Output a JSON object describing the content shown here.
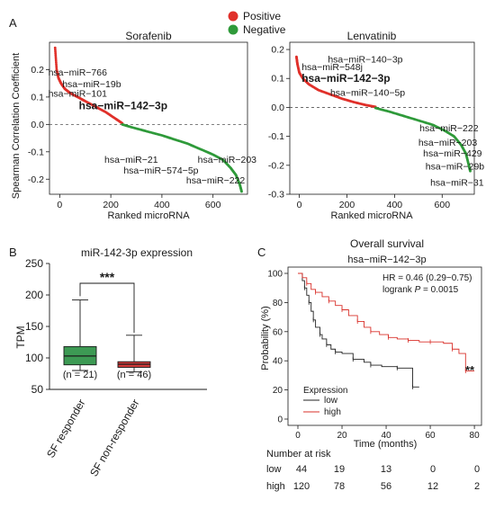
{
  "panel_labels": {
    "a": "A",
    "b": "B",
    "c": "C"
  },
  "legend": {
    "positive_label": "Positive",
    "negative_label": "Negative",
    "positive_color": "#e0302a",
    "negative_color": "#2f9a3a"
  },
  "chart_data": [
    {
      "id": "sorafenib",
      "type": "scatter",
      "title": "Sorafenib",
      "xlabel": "Ranked microRNA",
      "ylabel": "Spearman Correlation Coefficient",
      "xlim": [
        -40,
        735
      ],
      "ylim": [
        -0.255,
        0.3
      ],
      "xticks": [
        "0",
        "200",
        "400",
        "600"
      ],
      "xtick_values": [
        0,
        200,
        400,
        600
      ],
      "yticks": [
        "-0.2",
        "-0.1",
        "0.0",
        "0.1",
        "0.2"
      ],
      "ytick_values": [
        -0.2,
        -0.1,
        0.0,
        0.1,
        0.2
      ],
      "reference_line_y": 0,
      "curve": {
        "positive": [
          [
            -18,
            0.28
          ],
          [
            -12,
            0.2
          ],
          [
            -5,
            0.17
          ],
          [
            5,
            0.15
          ],
          [
            20,
            0.13
          ],
          [
            40,
            0.115
          ],
          [
            70,
            0.1
          ],
          [
            100,
            0.085
          ],
          [
            140,
            0.065
          ],
          [
            180,
            0.045
          ],
          [
            220,
            0.02
          ],
          [
            245,
            0.004
          ]
        ],
        "negative": [
          [
            245,
            0.0
          ],
          [
            280,
            -0.01
          ],
          [
            340,
            -0.025
          ],
          [
            400,
            -0.04
          ],
          [
            450,
            -0.055
          ],
          [
            500,
            -0.07
          ],
          [
            550,
            -0.09
          ],
          [
            600,
            -0.11
          ],
          [
            640,
            -0.13
          ],
          [
            670,
            -0.16
          ],
          [
            690,
            -0.185
          ],
          [
            705,
            -0.22
          ],
          [
            712,
            -0.245
          ]
        ]
      },
      "annotations": [
        {
          "text": "hsa−miR−766",
          "x": -45,
          "y": 0.178,
          "highlight": false
        },
        {
          "text": "hsa−miR−19b",
          "x": 10,
          "y": 0.135,
          "highlight": false
        },
        {
          "text": "hsa−miR−101",
          "x": -45,
          "y": 0.102,
          "highlight": false
        },
        {
          "text": "hsa−miR−142−3p",
          "x": 75,
          "y": 0.055,
          "highlight": true
        },
        {
          "text": "hsa−miR−21",
          "x": 175,
          "y": -0.14,
          "highlight": false
        },
        {
          "text": "hsa−miR−203",
          "x": 540,
          "y": -0.14,
          "highlight": false
        },
        {
          "text": "hsa−miR−574−5p",
          "x": 250,
          "y": -0.18,
          "highlight": false
        },
        {
          "text": "hsa−miR−222",
          "x": 495,
          "y": -0.215,
          "highlight": false
        }
      ]
    },
    {
      "id": "lenvatinib",
      "type": "scatter",
      "title": "Lenvatinib",
      "xlabel": "Ranked microRNA",
      "ylabel": "",
      "xlim": [
        -40,
        735
      ],
      "ylim": [
        -0.3,
        0.225
      ],
      "xticks": [
        "0",
        "200",
        "400",
        "600"
      ],
      "xtick_values": [
        0,
        200,
        400,
        600
      ],
      "yticks": [
        "-0.3",
        "-0.2",
        "-0.1",
        "0.0",
        "0.1",
        "0.2"
      ],
      "ytick_values": [
        -0.3,
        -0.2,
        -0.1,
        0.0,
        0.1,
        0.2
      ],
      "reference_line_y": 0,
      "curve": {
        "positive": [
          [
            -12,
            0.175
          ],
          [
            -8,
            0.15
          ],
          [
            0,
            0.12
          ],
          [
            15,
            0.1
          ],
          [
            40,
            0.08
          ],
          [
            80,
            0.06
          ],
          [
            130,
            0.045
          ],
          [
            180,
            0.03
          ],
          [
            230,
            0.018
          ],
          [
            280,
            0.008
          ],
          [
            320,
            0.002
          ]
        ],
        "negative": [
          [
            320,
            -0.002
          ],
          [
            380,
            -0.015
          ],
          [
            440,
            -0.03
          ],
          [
            500,
            -0.045
          ],
          [
            560,
            -0.06
          ],
          [
            610,
            -0.08
          ],
          [
            650,
            -0.1
          ],
          [
            680,
            -0.13
          ],
          [
            700,
            -0.16
          ],
          [
            712,
            -0.2
          ],
          [
            718,
            -0.22
          ]
        ]
      },
      "annotations": [
        {
          "text": "hsa−miR−140−3p",
          "x": 120,
          "y": 0.155,
          "highlight": false
        },
        {
          "text": "hsa−miR−548j",
          "x": 10,
          "y": 0.128,
          "highlight": false
        },
        {
          "text": "hsa−miR−142−3p",
          "x": 10,
          "y": 0.088,
          "highlight": true
        },
        {
          "text": "hsa−miR−140−5p",
          "x": 130,
          "y": 0.04,
          "highlight": false
        },
        {
          "text": "hsa−miR−222",
          "x": 505,
          "y": -0.083,
          "highlight": false
        },
        {
          "text": "hsa−miR−203",
          "x": 500,
          "y": -0.133,
          "highlight": false
        },
        {
          "text": "hsa−miR−429",
          "x": 520,
          "y": -0.17,
          "highlight": false
        },
        {
          "text": "hsa−miR−29b",
          "x": 530,
          "y": -0.215,
          "highlight": false
        },
        {
          "text": "hsa−miR−31",
          "x": 550,
          "y": -0.27,
          "highlight": false
        }
      ]
    },
    {
      "id": "expression",
      "type": "box",
      "title": "miR-142-3p expression",
      "ylabel": "TPM",
      "ylim": [
        50,
        250
      ],
      "yticks": [
        "50",
        "100",
        "150",
        "200",
        "250"
      ],
      "ytick_values": [
        50,
        100,
        150,
        200,
        250
      ],
      "categories": [
        "SF responder",
        "SF non-responder"
      ],
      "boxes": [
        {
          "name": "SF responder",
          "min": 80,
          "q1": 89,
          "median": 103,
          "q3": 118,
          "max": 192,
          "n_label": "(n = 21)",
          "color": "#3d9a54"
        },
        {
          "name": "SF non-responder",
          "min": 78,
          "q1": 85,
          "median": 90,
          "q3": 94,
          "max": 136,
          "n_label": "(n = 46)",
          "color": "#d23a3a"
        }
      ],
      "significance": "***"
    },
    {
      "id": "survival",
      "type": "line",
      "title": "Overall survival",
      "subtitle": "hsa−miR−142−3p",
      "xlabel": "Time (months)",
      "ylabel": "Probability (%)",
      "xlim": [
        0,
        82
      ],
      "ylim": [
        0,
        100
      ],
      "xticks": [
        "0",
        "20",
        "40",
        "60",
        "80"
      ],
      "xtick_values": [
        0,
        20,
        40,
        60,
        80
      ],
      "yticks": [
        "0",
        "20",
        "40",
        "60",
        "80",
        "100"
      ],
      "ytick_values": [
        0,
        20,
        40,
        60,
        80,
        100
      ],
      "stats": {
        "hr": "HR = 0.46 (0.29−0.75)",
        "logrank_prefix": "logrank ",
        "logrank_p_symbol": "P",
        "logrank_value": " = 0.0015"
      },
      "significance": "**",
      "legend_title": "Expression",
      "series": [
        {
          "name": "low",
          "color": "#222222",
          "points": [
            [
              0,
              100
            ],
            [
              2,
              95
            ],
            [
              3,
              90
            ],
            [
              4,
              85
            ],
            [
              5,
              80
            ],
            [
              6,
              74
            ],
            [
              7,
              68
            ],
            [
              8,
              63
            ],
            [
              10,
              58
            ],
            [
              11,
              55
            ],
            [
              13,
              51
            ],
            [
              15,
              48
            ],
            [
              17,
              46
            ],
            [
              20,
              45
            ],
            [
              25,
              41
            ],
            [
              30,
              39
            ],
            [
              33,
              37
            ],
            [
              38,
              36
            ],
            [
              45,
              35
            ],
            [
              50,
              35
            ],
            [
              52,
              22
            ],
            [
              55,
              22
            ]
          ]
        },
        {
          "name": "high",
          "color": "#d9302a",
          "points": [
            [
              0,
              100
            ],
            [
              2,
              97
            ],
            [
              4,
              93
            ],
            [
              6,
              89
            ],
            [
              8,
              87
            ],
            [
              11,
              84
            ],
            [
              14,
              81
            ],
            [
              17,
              78
            ],
            [
              20,
              75
            ],
            [
              23,
              71
            ],
            [
              27,
              67
            ],
            [
              30,
              63
            ],
            [
              33,
              60
            ],
            [
              37,
              58
            ],
            [
              41,
              56
            ],
            [
              45,
              55
            ],
            [
              50,
              54
            ],
            [
              55,
              53
            ],
            [
              60,
              53
            ],
            [
              66,
              52
            ],
            [
              70,
              48
            ],
            [
              73,
              45
            ],
            [
              76,
              33
            ],
            [
              80,
              33
            ]
          ]
        }
      ],
      "risk_table": {
        "title": "Number at risk",
        "rows": [
          {
            "label": "low",
            "color": "#1a1a1a",
            "values": [
              "44",
              "19",
              "13",
              "0",
              "0"
            ]
          },
          {
            "label": "high",
            "color": "#e0302a",
            "values": [
              "120",
              "78",
              "56",
              "12",
              "2"
            ]
          }
        ]
      }
    }
  ]
}
